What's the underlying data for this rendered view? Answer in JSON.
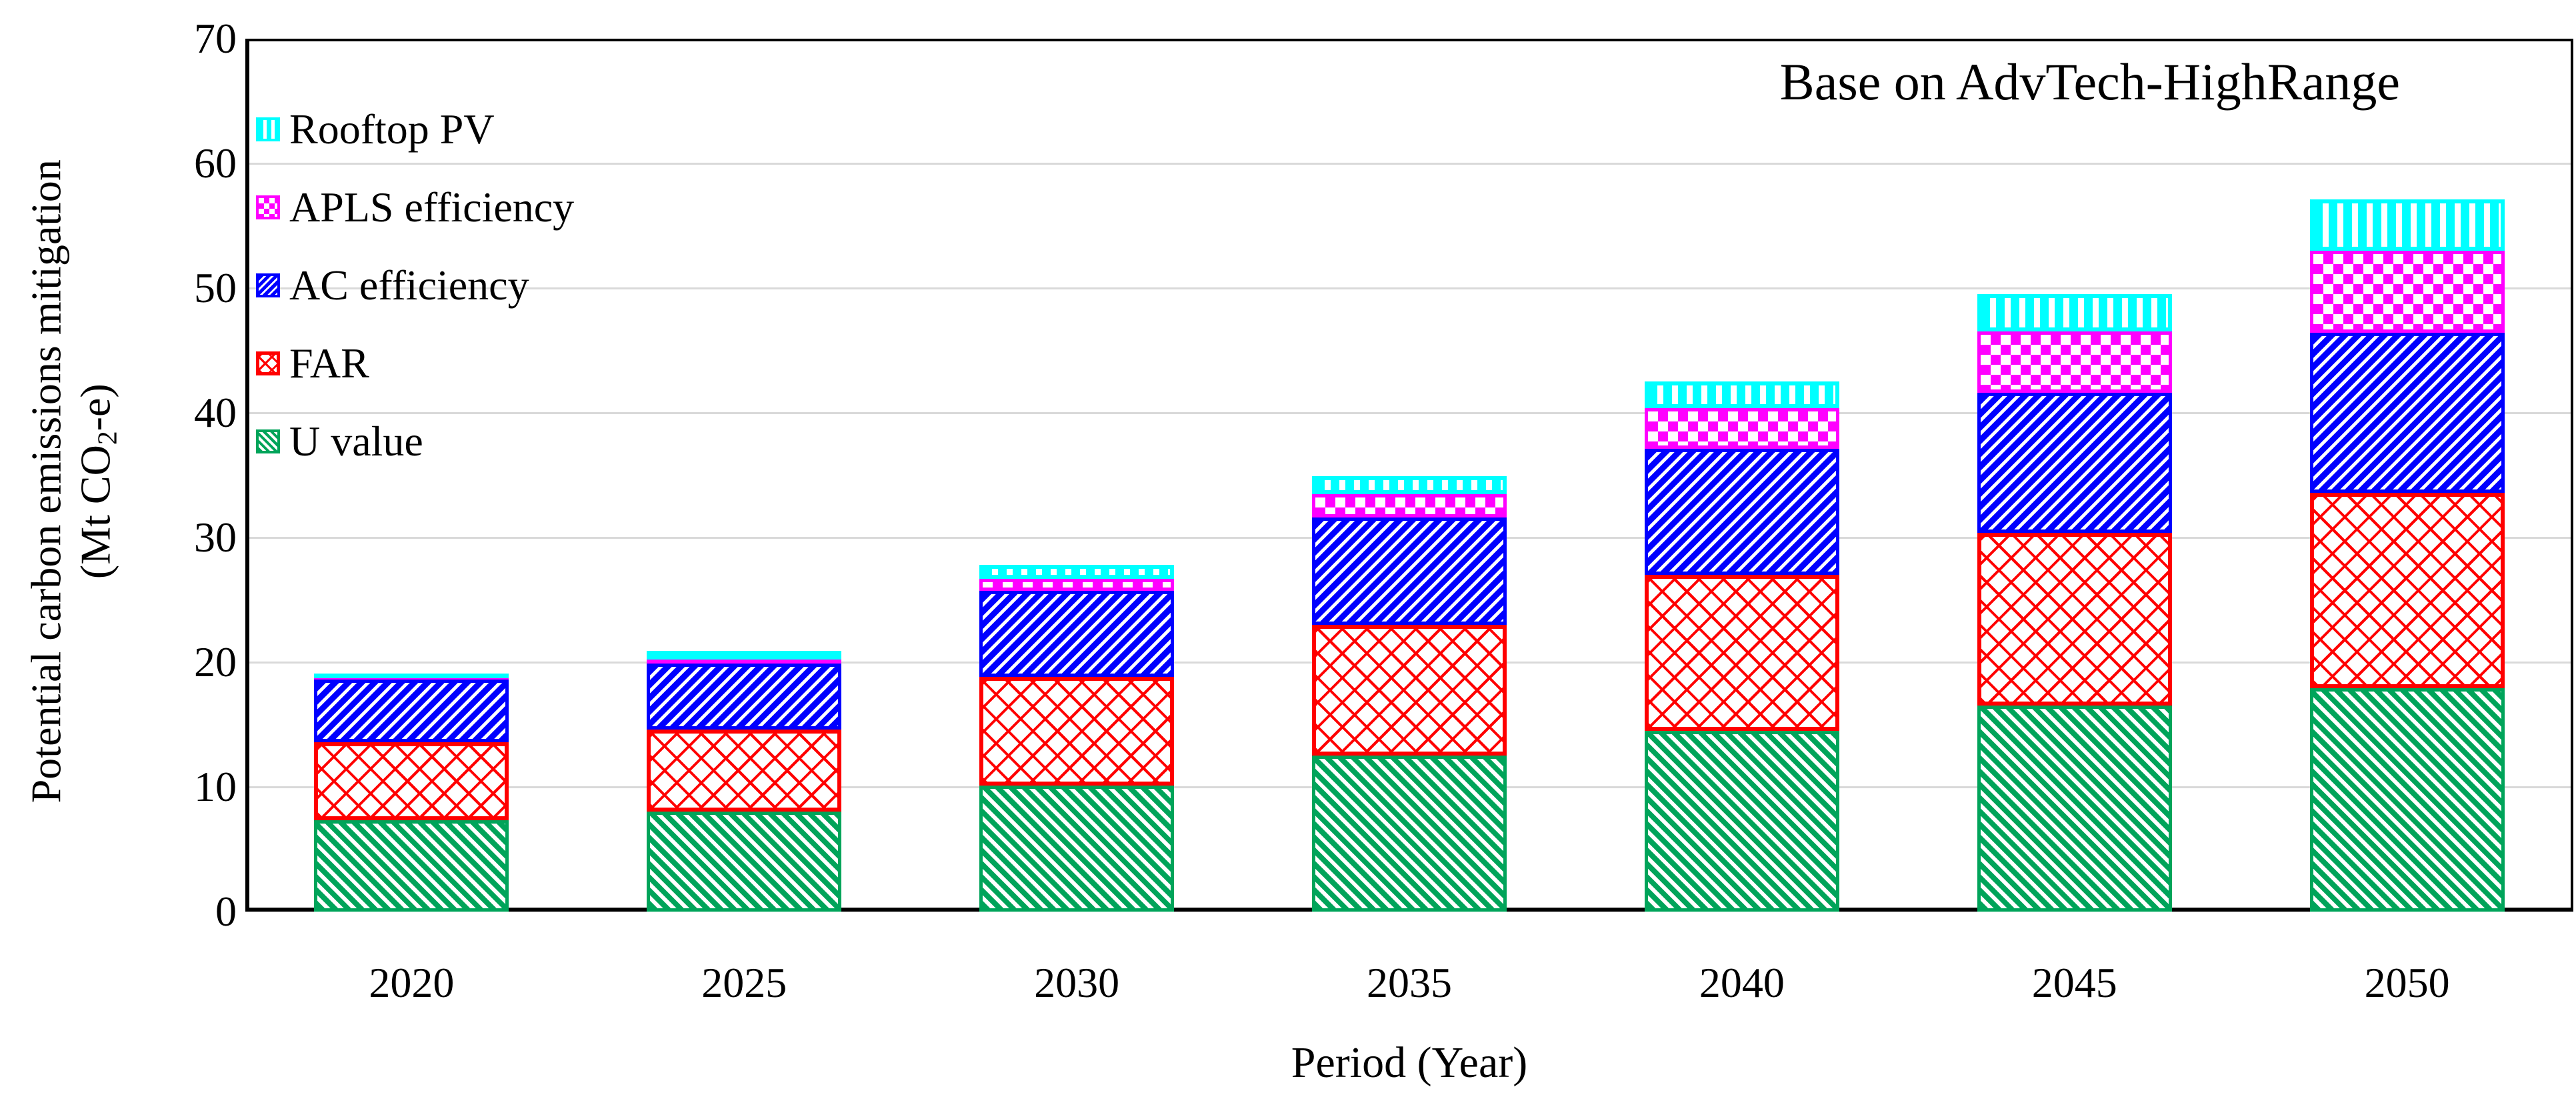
{
  "annotation": "Base on AdvTech-HighRange",
  "y_axis": {
    "title_line1": "Potential carbon emissions mitigation",
    "title_unit_prefix": "(Mt CO",
    "title_unit_sub": "2",
    "title_unit_suffix": "-e)",
    "ticks": [
      0,
      10,
      20,
      30,
      40,
      50,
      60,
      70
    ]
  },
  "x_axis": {
    "title": "Period (Year)"
  },
  "legend": [
    {
      "key": "pv",
      "label": "Rooftop PV"
    },
    {
      "key": "apls",
      "label": "APLS efficiency"
    },
    {
      "key": "ac",
      "label": "AC efficiency"
    },
    {
      "key": "far",
      "label": "FAR"
    },
    {
      "key": "u",
      "label": "U value"
    }
  ],
  "chart_data": {
    "type": "bar",
    "stacked": true,
    "title": "Base on AdvTech-HighRange",
    "categories": [
      "2020",
      "2025",
      "2030",
      "2035",
      "2040",
      "2045",
      "2050"
    ],
    "series": [
      {
        "key": "u",
        "name": "U value",
        "color": "#00A45A",
        "pattern": "diagonal-up-stripes",
        "values": [
          7.3,
          8.0,
          10.1,
          12.5,
          14.5,
          16.5,
          17.9
        ]
      },
      {
        "key": "far",
        "name": "FAR",
        "color": "#FF0000",
        "pattern": "diagonal-lattice",
        "values": [
          6.3,
          6.6,
          8.7,
          10.5,
          12.5,
          13.9,
          15.7
        ]
      },
      {
        "key": "ac",
        "name": "AC efficiency",
        "color": "#0000FF",
        "pattern": "diagonal-down-stripes",
        "values": [
          5.0,
          5.3,
          6.9,
          8.6,
          10.1,
          11.2,
          12.8
        ]
      },
      {
        "key": "apls",
        "name": "APLS efficiency",
        "color": "#FF00FF",
        "pattern": "checkerboard",
        "values": [
          0.1,
          0.3,
          1.0,
          1.9,
          3.3,
          4.9,
          6.6
        ]
      },
      {
        "key": "pv",
        "name": "Rooftop PV",
        "color": "#00FFFF",
        "pattern": "vertical-stripes",
        "values": [
          0.4,
          0.7,
          1.1,
          1.4,
          2.1,
          3.0,
          4.1
        ]
      }
    ],
    "totals": [
      19.1,
      20.9,
      27.8,
      34.9,
      42.5,
      49.5,
      57.1
    ],
    "ylim": [
      0,
      70
    ],
    "ylabel": "Potential carbon emissions mitigation (Mt CO2-e)",
    "xlabel": "Period (Year)",
    "grid": "horizontal-gray",
    "legend_position": "top-left-inside",
    "frame": "full-box"
  }
}
